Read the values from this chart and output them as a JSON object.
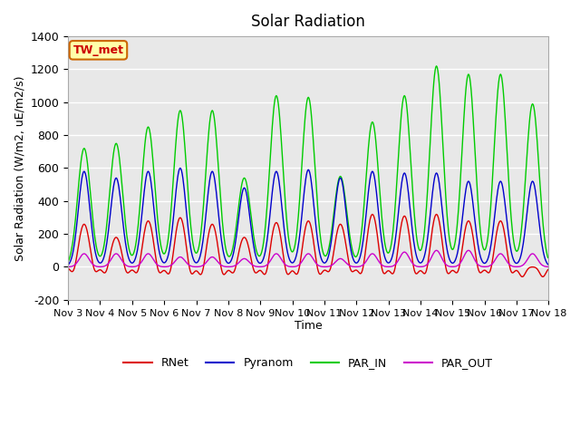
{
  "title": "Solar Radiation",
  "xlabel": "Time",
  "ylabel": "Solar Radiation (W/m2, uE/m2/s)",
  "ylim": [
    -200,
    1400
  ],
  "xtick_labels": [
    "Nov 3",
    "Nov 4",
    "Nov 5",
    "Nov 6",
    "Nov 7",
    "Nov 8",
    "Nov 9",
    "Nov 10",
    "Nov 11",
    "Nov 12",
    "Nov 13",
    "Nov 14",
    "Nov 15",
    "Nov 16",
    "Nov 17",
    "Nov 18"
  ],
  "ytick_values": [
    -200,
    0,
    200,
    400,
    600,
    800,
    1000,
    1200,
    1400
  ],
  "line_colors": {
    "RNet": "#dd0000",
    "Pyranom": "#0000cc",
    "PAR_IN": "#00cc00",
    "PAR_OUT": "#cc00cc"
  },
  "annotation_text": "TW_met",
  "annotation_box_facecolor": "#ffffaa",
  "annotation_box_edgecolor": "#cc6600",
  "annotation_text_color": "#cc0000",
  "plot_background": "#e8e8e8",
  "num_days": 15,
  "day_peaks": {
    "RNet": [
      260,
      180,
      280,
      300,
      260,
      180,
      270,
      280,
      260,
      320,
      310,
      320,
      280,
      280,
      0
    ],
    "Pyranom": [
      580,
      540,
      580,
      600,
      580,
      480,
      580,
      590,
      540,
      580,
      570,
      570,
      520,
      520,
      520
    ],
    "PAR_IN": [
      720,
      750,
      850,
      950,
      950,
      540,
      1040,
      1030,
      550,
      880,
      1040,
      1220,
      1170,
      1170,
      990
    ],
    "PAR_OUT": [
      80,
      80,
      80,
      60,
      60,
      50,
      80,
      80,
      50,
      80,
      90,
      100,
      100,
      80,
      80
    ],
    "RNet_neg": [
      -60,
      -60,
      -70,
      -80,
      -80,
      -60,
      -80,
      -80,
      -60,
      -80,
      -80,
      -80,
      -70,
      -70,
      -60
    ]
  },
  "sigma_PAR_IN": 0.2,
  "sigma_Pyranom": 0.18,
  "sigma_RNet": 0.17,
  "sigma_PAR_OUT": 0.15,
  "sigma_neg": 0.1
}
